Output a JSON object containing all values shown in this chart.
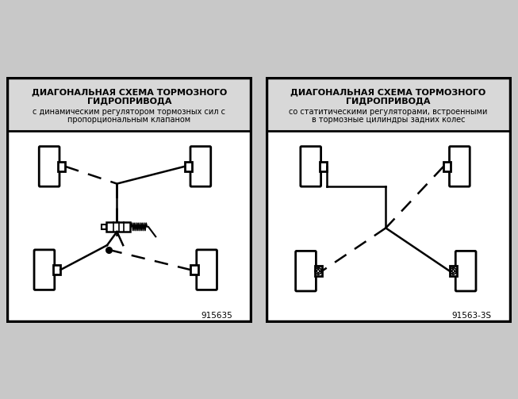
{
  "title1_line1": "ДИАГОНАЛЬНАЯ СХЕМА ТОРМОЗНОГО",
  "title1_line2": "ГИДРОПРИВОДА",
  "title1_sub1": "с динамическим регулятором тормозных сил с",
  "title1_sub2": "пропорциональным клапаном",
  "title2_line1": "ДИАГОНАЛЬНАЯ СХЕМА ТОРМОЗНОГО",
  "title2_line2": "ГИДРОПРИВОДА",
  "title2_sub1": "со статитическими регуляторами, встроенными",
  "title2_sub2": "в тормозные цилиндры задних колес",
  "label1": "915635",
  "label2": "91563-3S",
  "outer_bg": "#c8c8c8",
  "panel_bg": "#ffffff",
  "title_bg": "#d0d0d0",
  "lw_thick": 2.0,
  "lw_line": 1.8,
  "title_fs": 8.0,
  "sub_fs": 7.0,
  "label_fs": 7.5,
  "dash_seq": [
    7,
    5
  ]
}
